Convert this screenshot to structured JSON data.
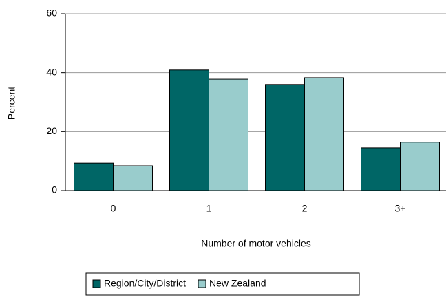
{
  "chart_data": {
    "type": "bar",
    "categories": [
      "0",
      "1",
      "2",
      "3+"
    ],
    "x_label": "Number of motor vehicles",
    "y_label": "Percent",
    "series": [
      {
        "name": "Region/City/District",
        "color": "#006666",
        "values": [
          9.3,
          40.9,
          36,
          14.5
        ]
      },
      {
        "name": "New Zealand",
        "color": "#99cccc",
        "values": [
          8.4,
          37.8,
          38.3,
          16.4
        ]
      }
    ],
    "ylim": [
      0,
      60
    ],
    "yticks": [
      0,
      20,
      40,
      60
    ],
    "grid": true,
    "legend": "bottom"
  }
}
